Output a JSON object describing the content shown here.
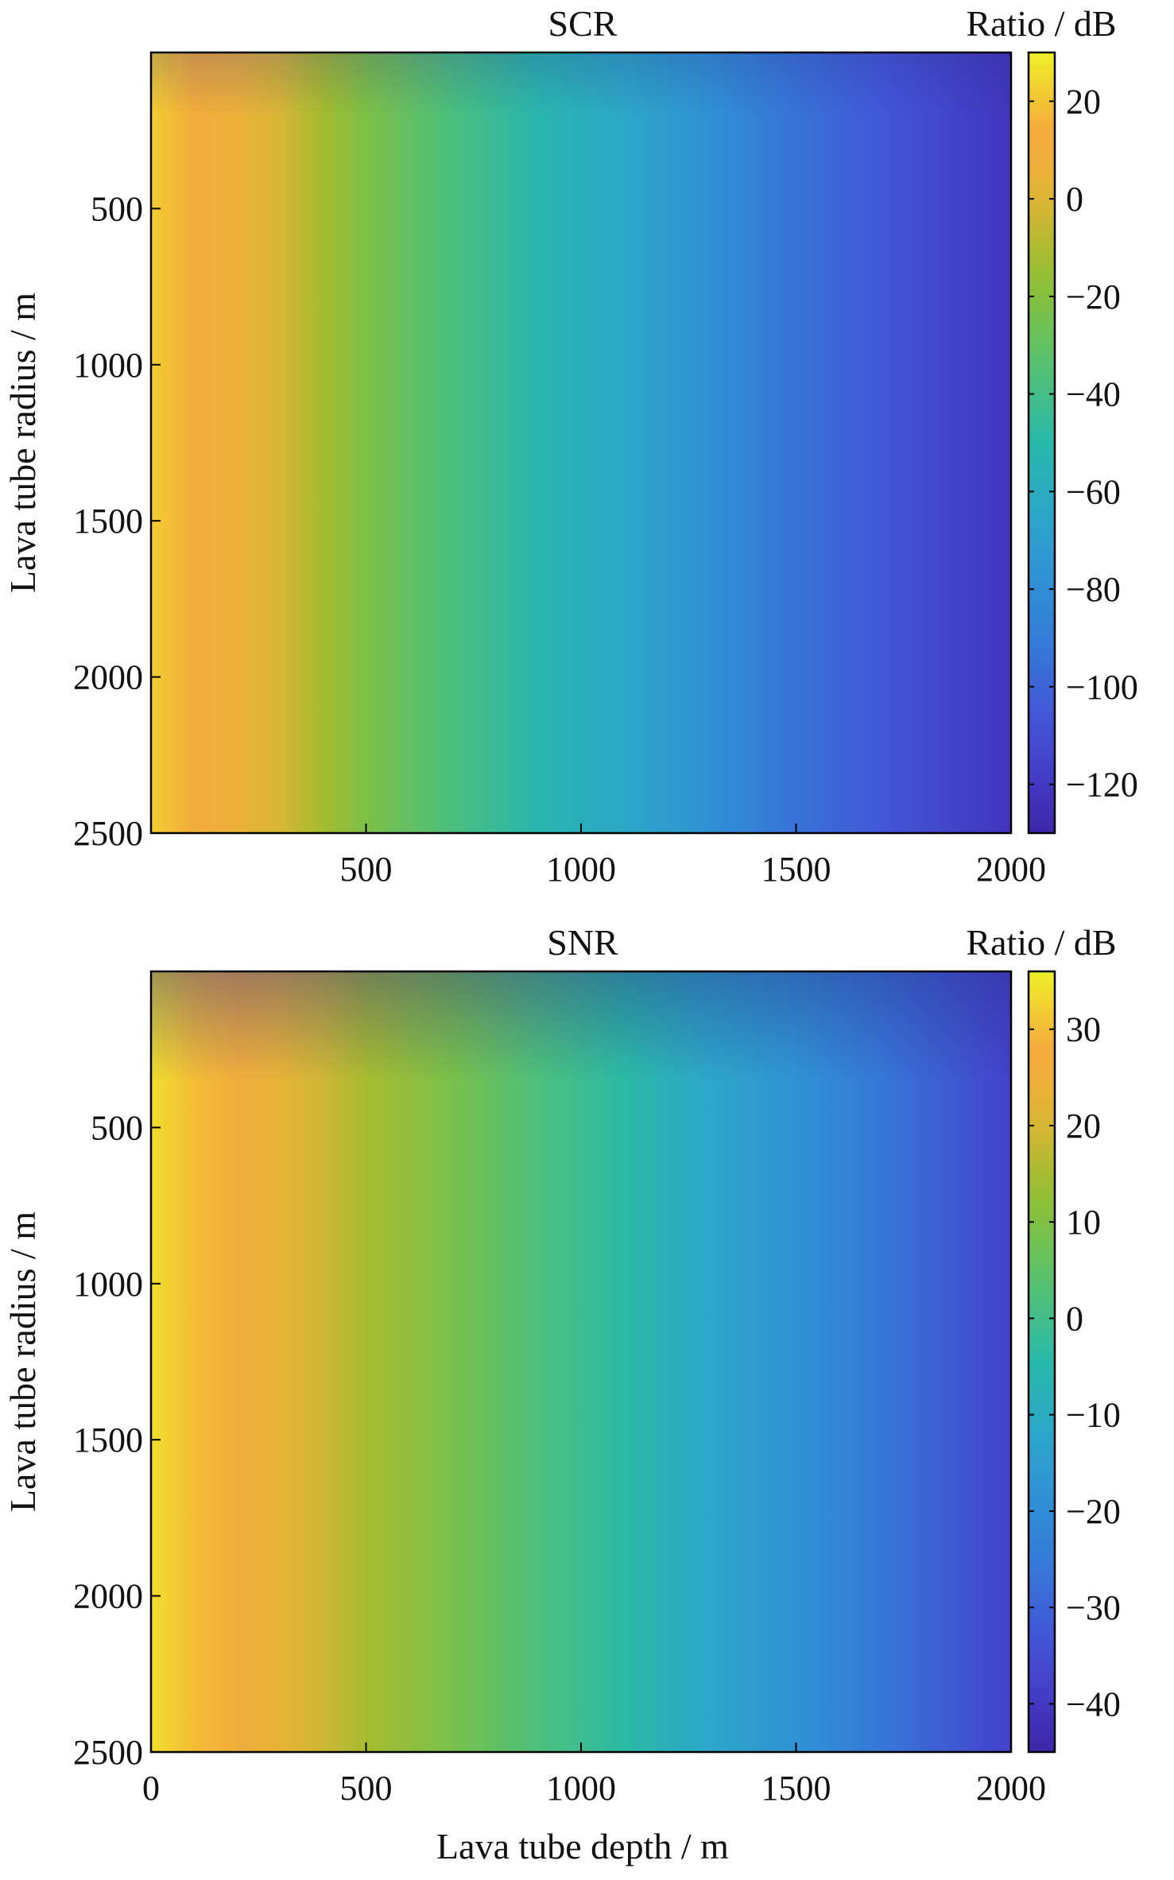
{
  "chart_data": [
    {
      "type": "heatmap",
      "title": "SCR",
      "xlabel": "",
      "ylabel": "Lava tube radius / m",
      "xlim": [
        0,
        2000
      ],
      "ylim": [
        2500,
        0
      ],
      "y_direction": "top-to-bottom",
      "xticks": [
        500,
        1000,
        1500,
        2000
      ],
      "yticks": [
        500,
        1000,
        1500,
        2000,
        2500
      ],
      "colorbar": {
        "title": "Ratio / dB",
        "range": [
          -130,
          30
        ],
        "ticks": [
          20,
          0,
          -20,
          -40,
          -60,
          -80,
          -100,
          -120
        ],
        "tick_labels": [
          "20",
          "0",
          "−20",
          "−40",
          "−60",
          "−80",
          "−100",
          "−120"
        ],
        "colormap": "parula"
      },
      "depth_profile": {
        "depth": [
          0,
          100,
          200,
          300,
          400,
          500,
          700,
          900,
          1100,
          1300,
          1500,
          1700,
          2000
        ],
        "value": [
          22,
          12,
          6,
          -2,
          -12,
          -22,
          -38,
          -52,
          -64,
          -78,
          -94,
          -106,
          -122
        ]
      }
    },
    {
      "type": "heatmap",
      "title": "SNR",
      "xlabel": "Lava tube depth / m",
      "ylabel": "Lava tube radius / m",
      "xlim": [
        0,
        2000
      ],
      "ylim": [
        2500,
        0
      ],
      "y_direction": "top-to-bottom",
      "xticks": [
        0,
        500,
        1000,
        1500,
        2000
      ],
      "yticks": [
        500,
        1000,
        1500,
        2000,
        2500
      ],
      "colorbar": {
        "title": "Ratio / dB",
        "range": [
          -45,
          36
        ],
        "ticks": [
          30,
          20,
          10,
          0,
          -10,
          -20,
          -30,
          -40
        ],
        "tick_labels": [
          "30",
          "20",
          "10",
          "0",
          "−10",
          "−20",
          "−30",
          "−40"
        ],
        "colormap": "parula"
      },
      "depth_profile": {
        "depth": [
          0,
          100,
          200,
          300,
          400,
          500,
          700,
          900,
          1100,
          1300,
          1500,
          1700,
          2000
        ],
        "value": [
          34,
          30,
          26,
          22,
          19,
          15,
          9,
          2,
          -4,
          -12,
          -18,
          -26,
          -38
        ]
      }
    }
  ]
}
